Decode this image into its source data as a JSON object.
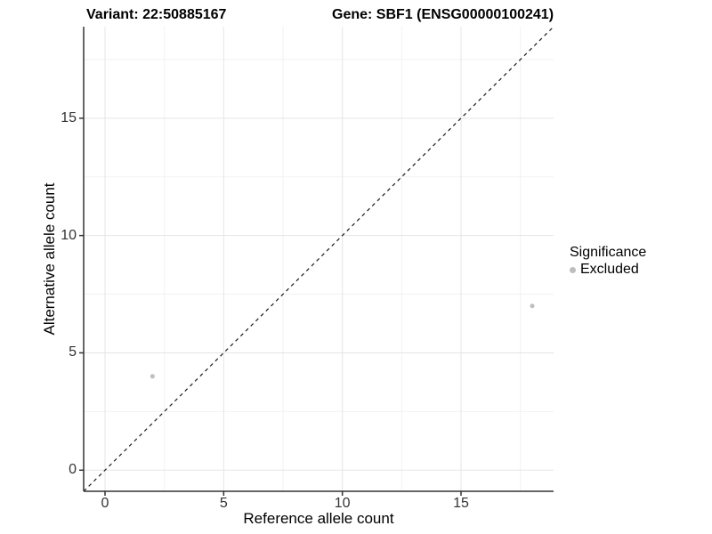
{
  "chart_data": {
    "type": "scatter",
    "title_variant": "Variant: 22:50885167",
    "title_gene": "Gene: SBF1 (ENSG00000100241)",
    "xlabel": "Reference allele count",
    "ylabel": "Alternative allele count",
    "x_ticks": [
      0,
      5,
      10,
      15
    ],
    "y_ticks": [
      0,
      5,
      10,
      15
    ],
    "x_minor_ticks": [
      2.5,
      7.5,
      12.5,
      17.5
    ],
    "y_minor_ticks": [
      2.5,
      7.5,
      12.5,
      17.5
    ],
    "xlim": [
      -0.9,
      18.9
    ],
    "ylim": [
      -0.9,
      18.9
    ],
    "grid": true,
    "points": [
      {
        "x": 2,
        "y": 4,
        "significance": "Excluded"
      },
      {
        "x": 18,
        "y": 7,
        "significance": "Excluded"
      }
    ],
    "reference_line": {
      "kind": "identity",
      "style": "dashed"
    },
    "legend": {
      "title": "Significance",
      "position": "right",
      "items": [
        {
          "label": "Excluded",
          "color": "#bebebe"
        }
      ]
    },
    "colors": {
      "point": "#bebebe",
      "grid_major": "#e5e5e5",
      "grid_minor": "#f2f2f2",
      "axis_line": "#333333",
      "tick": "#333333",
      "reference_line": "#1a1a1a"
    }
  }
}
